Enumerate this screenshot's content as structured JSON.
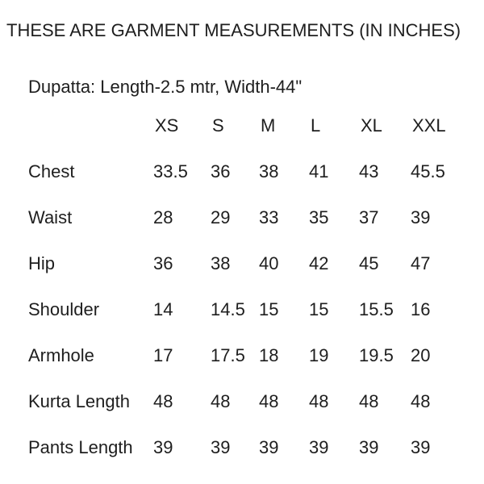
{
  "page": {
    "title": "THESE ARE GARMENT MEASUREMENTS (IN INCHES)",
    "subtitle": "Dupatta: Length-2.5 mtr, Width-44\""
  },
  "table": {
    "sizes": [
      "XS",
      "S",
      "M",
      "L",
      "XL",
      "XXL"
    ],
    "rows": [
      {
        "label": "Chest",
        "values": [
          "33.5",
          "36",
          "38",
          "41",
          "43",
          "45.5"
        ]
      },
      {
        "label": "Waist",
        "values": [
          "28",
          "29",
          "33",
          "35",
          "37",
          "39"
        ]
      },
      {
        "label": "Hip",
        "values": [
          "36",
          "38",
          "40",
          "42",
          "45",
          "47"
        ]
      },
      {
        "label": "Shoulder",
        "values": [
          "14",
          "14.5",
          "15",
          "15",
          "15.5",
          "16"
        ]
      },
      {
        "label": "Armhole",
        "values": [
          "17",
          "17.5",
          "18",
          "19",
          "19.5",
          "20"
        ]
      },
      {
        "label": "Kurta Length",
        "values": [
          "48",
          "48",
          "48",
          "48",
          "48",
          "48"
        ]
      },
      {
        "label": "Pants Length",
        "values": [
          "39",
          "39",
          "39",
          "39",
          "39",
          "39"
        ]
      }
    ]
  },
  "colors": {
    "background": "#ffffff",
    "text": "#1e1e1e"
  }
}
